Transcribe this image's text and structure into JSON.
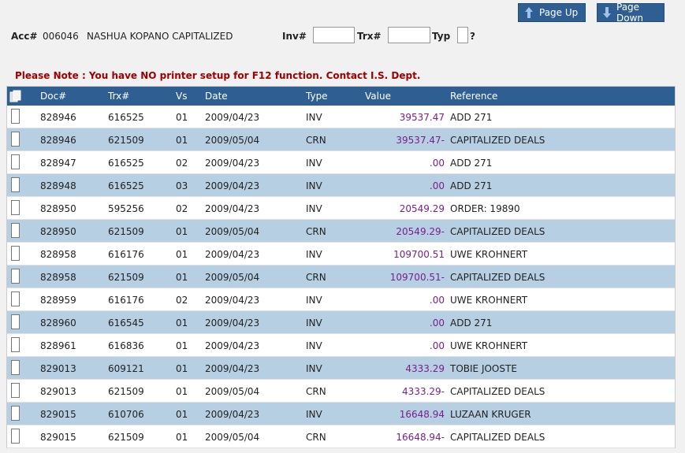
{
  "buttons": {
    "page_up": "Page Up",
    "page_down": "Page Down"
  },
  "header": {
    "acc_label": "Acc#",
    "acc_number": "006046",
    "acc_name": "NASHUA KOPANO CAPITALIZED",
    "inv_label": "Inv#",
    "inv_value": "",
    "trx_label": "Trx#",
    "trx_value": "",
    "typ_label": "Typ",
    "typ_value": "",
    "help": "?"
  },
  "note": "Please Note : You have NO printer setup for F12 function. Contact I.S. Dept.",
  "table": {
    "columns": {
      "doc": "Doc#",
      "trx": "Trx#",
      "vs": "Vs",
      "date": "Date",
      "type": "Type",
      "value": "Value",
      "reference": "Reference"
    },
    "rows": [
      {
        "doc": "828946",
        "trx": "616525",
        "vs": "01",
        "date": "2009/04/23",
        "type": "INV",
        "value": "39537.47",
        "reference": "ADD 271"
      },
      {
        "doc": "828946",
        "trx": "621509",
        "vs": "01",
        "date": "2009/05/04",
        "type": "CRN",
        "value": "39537.47-",
        "reference": "CAPITALIZED DEALS"
      },
      {
        "doc": "828947",
        "trx": "616525",
        "vs": "02",
        "date": "2009/04/23",
        "type": "INV",
        "value": ".00",
        "reference": "ADD 271"
      },
      {
        "doc": "828948",
        "trx": "616525",
        "vs": "03",
        "date": "2009/04/23",
        "type": "INV",
        "value": ".00",
        "reference": "ADD 271"
      },
      {
        "doc": "828950",
        "trx": "595256",
        "vs": "02",
        "date": "2009/04/23",
        "type": "INV",
        "value": "20549.29",
        "reference": "ORDER: 19890"
      },
      {
        "doc": "828950",
        "trx": "621509",
        "vs": "01",
        "date": "2009/05/04",
        "type": "CRN",
        "value": "20549.29-",
        "reference": "CAPITALIZED DEALS"
      },
      {
        "doc": "828958",
        "trx": "616176",
        "vs": "01",
        "date": "2009/04/23",
        "type": "INV",
        "value": "109700.51",
        "reference": "UWE KROHNERT"
      },
      {
        "doc": "828958",
        "trx": "621509",
        "vs": "01",
        "date": "2009/05/04",
        "type": "CRN",
        "value": "109700.51-",
        "reference": "CAPITALIZED DEALS"
      },
      {
        "doc": "828959",
        "trx": "616176",
        "vs": "02",
        "date": "2009/04/23",
        "type": "INV",
        "value": ".00",
        "reference": "UWE KROHNERT"
      },
      {
        "doc": "828960",
        "trx": "616545",
        "vs": "01",
        "date": "2009/04/23",
        "type": "INV",
        "value": ".00",
        "reference": "ADD 271"
      },
      {
        "doc": "828961",
        "trx": "616836",
        "vs": "01",
        "date": "2009/04/23",
        "type": "INV",
        "value": ".00",
        "reference": "UWE KROHNERT"
      },
      {
        "doc": "829013",
        "trx": "609121",
        "vs": "01",
        "date": "2009/04/23",
        "type": "INV",
        "value": "4333.29",
        "reference": "TOBIE JOOSTE"
      },
      {
        "doc": "829013",
        "trx": "621509",
        "vs": "01",
        "date": "2009/05/04",
        "type": "CRN",
        "value": "4333.29-",
        "reference": "CAPITALIZED DEALS"
      },
      {
        "doc": "829015",
        "trx": "610706",
        "vs": "01",
        "date": "2009/04/23",
        "type": "INV",
        "value": "16648.94",
        "reference": "LUZAAN KRUGER"
      },
      {
        "doc": "829015",
        "trx": "621509",
        "vs": "01",
        "date": "2009/05/04",
        "type": "CRN",
        "value": "16648.94-",
        "reference": "CAPITALIZED DEALS"
      }
    ]
  }
}
